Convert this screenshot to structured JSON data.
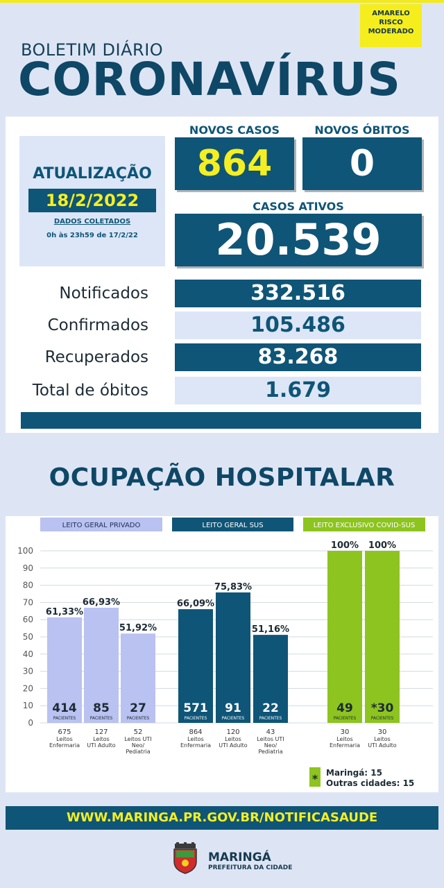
{
  "header": {
    "alert_lines": [
      "AMARELO",
      "RISCO",
      "MODERADO"
    ],
    "subtitle": "BOLETIM DIÁRIO",
    "title": "CORONAVÍRUS"
  },
  "update": {
    "title": "ATUALIZAÇÃO",
    "date": "18/2/2022",
    "note_line1": "DADOS COLETADOS",
    "note_line2": "0h às 23h59 de 17/2/22"
  },
  "stats": {
    "novos_casos_label": "NOVOS CASOS",
    "novos_casos": "864",
    "novos_obitos_label": "NOVOS ÓBITOS",
    "novos_obitos": "0",
    "casos_ativos_label": "CASOS ATIVOS",
    "casos_ativos": "20.539",
    "rows": [
      {
        "label": "Notificados",
        "value": "332.516"
      },
      {
        "label": "Confirmados",
        "value": "105.486"
      },
      {
        "label": "Recuperados",
        "value": "83.268"
      },
      {
        "label": "Total de óbitos",
        "value": "1.679"
      }
    ]
  },
  "section_title": "OCUPAÇÃO HOSPITALAR",
  "chart_data": {
    "type": "bar",
    "ylim": [
      0,
      100
    ],
    "yticks": [
      0,
      10,
      20,
      30,
      40,
      50,
      60,
      70,
      80,
      90,
      100
    ],
    "patients_label": "PACIENTES",
    "groups": [
      {
        "name": "LEITO GERAL PRIVADO",
        "color": "#b9c2f0",
        "header_color": "#b9c2f0",
        "header_text_color": "#25305a",
        "bars": [
          {
            "value": 61.33,
            "label": "61,33%",
            "patients": "414",
            "beds": "675",
            "desc": [
              "Leitos",
              "Enfermaria"
            ]
          },
          {
            "value": 66.93,
            "label": "66,93%",
            "patients": "85",
            "beds": "127",
            "desc": [
              "Leitos",
              "UTI Adulto"
            ]
          },
          {
            "value": 51.92,
            "label": "51,92%",
            "patients": "27",
            "beds": "52",
            "desc": [
              "Leitos UTI",
              "Neo/",
              "Pediatria"
            ]
          }
        ]
      },
      {
        "name": "LEITO GERAL SUS",
        "color": "#0f5577",
        "header_color": "#0f5577",
        "header_text_color": "#ffffff",
        "bars": [
          {
            "value": 66.09,
            "label": "66,09%",
            "patients": "571",
            "beds": "864",
            "desc": [
              "Leitos",
              "Enfermaria"
            ]
          },
          {
            "value": 75.83,
            "label": "75,83%",
            "patients": "91",
            "beds": "120",
            "desc": [
              "Leitos",
              "UTI Adulto"
            ]
          },
          {
            "value": 51.16,
            "label": "51,16%",
            "patients": "22",
            "beds": "43",
            "desc": [
              "Leitos UTI",
              "Neo/",
              "Pediatria"
            ]
          }
        ]
      },
      {
        "name": "LEITO EXCLUSIVO COVID-SUS",
        "color": "#8dc41f",
        "header_color": "#8dc41f",
        "header_text_color": "#ffffff",
        "bars": [
          {
            "value": 100,
            "label": "100%",
            "patients": "49",
            "beds": "30",
            "desc": [
              "Leitos",
              "Enfermaria"
            ]
          },
          {
            "value": 100,
            "label": "100%",
            "patients": "*30",
            "beds": "30",
            "desc": [
              "Leitos",
              "UTI Adulto"
            ]
          }
        ]
      }
    ]
  },
  "footnote": {
    "symbol": "*",
    "line1": "Maringá: 15",
    "line2": "Outras cidades: 15"
  },
  "website": "WWW.MARINGA.PR.GOV.BR/NOTIFICASAUDE",
  "city": "MARINGÁ",
  "prefeitura": "PREFEITURA DA CIDADE"
}
